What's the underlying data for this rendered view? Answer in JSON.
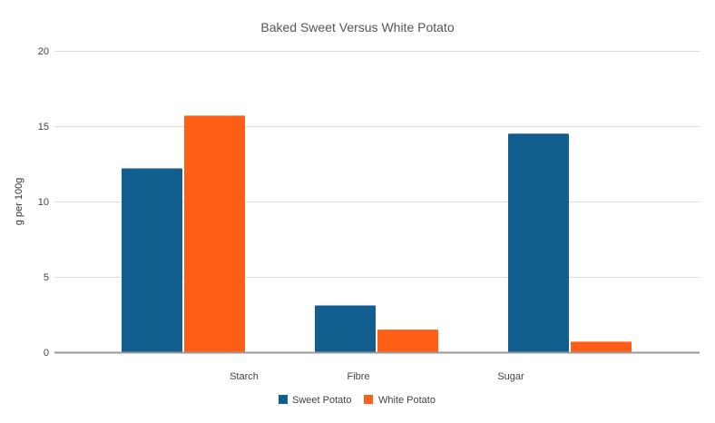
{
  "chart_data": {
    "type": "bar",
    "title": "Baked Sweet Versus White Potato",
    "xlabel": "",
    "ylabel": "g per 100g",
    "ylim": [
      0,
      20
    ],
    "yticks": [
      0,
      5,
      10,
      15,
      20
    ],
    "grid": true,
    "legend_position": "bottom",
    "categories": [
      "Starch",
      "Fibre",
      "Sugar"
    ],
    "series": [
      {
        "name": "Sweet Potato",
        "color": "#115E8F",
        "values": [
          12.2,
          3.1,
          14.5
        ]
      },
      {
        "name": "White Potato",
        "color": "#FF5E17",
        "values": [
          15.7,
          1.5,
          0.7
        ]
      }
    ]
  },
  "labels": {
    "title": "Baked Sweet Versus White Potato",
    "ylabel": "g per 100g",
    "yticks": [
      "0",
      "5",
      "10",
      "15",
      "20"
    ],
    "categories": [
      "Starch",
      "Fibre",
      "Sugar"
    ],
    "legend": [
      "Sweet Potato",
      "White Potato"
    ]
  }
}
